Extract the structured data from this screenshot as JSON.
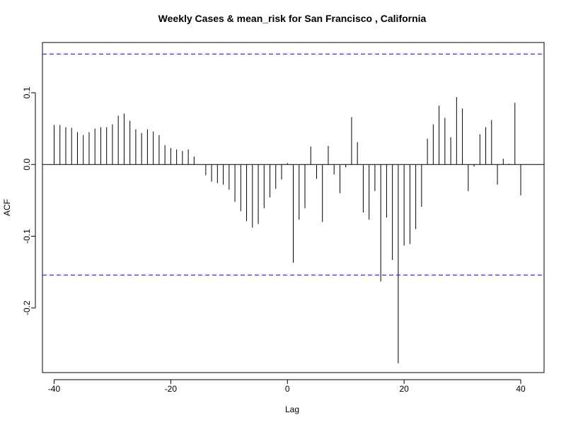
{
  "chart_data": {
    "type": "bar",
    "title": "Weekly Cases & mean_risk for San Francisco , California",
    "xlabel": "Lag",
    "ylabel": "ACF",
    "xlim": [
      -42,
      44
    ],
    "ylim": [
      -0.29,
      0.17
    ],
    "x_ticks": [
      -40,
      -20,
      0,
      20,
      40
    ],
    "x_tick_labels": [
      "-40",
      "-20",
      "0",
      "20",
      "40"
    ],
    "y_ticks": [
      -0.2,
      -0.1,
      0.0,
      0.1
    ],
    "y_tick_labels": [
      "-0.2",
      "-0.1",
      "0.0",
      "0.1"
    ],
    "confidence_bounds": [
      0.154,
      -0.154
    ],
    "confidence_line_color": "#0000ff",
    "bar_color": "#000000",
    "zero_line": true,
    "grid": false,
    "x": [
      -40,
      -39,
      -38,
      -37,
      -36,
      -35,
      -34,
      -33,
      -32,
      -31,
      -30,
      -29,
      -28,
      -27,
      -26,
      -25,
      -24,
      -23,
      -22,
      -21,
      -20,
      -19,
      -18,
      -17,
      -16,
      -15,
      -14,
      -13,
      -12,
      -11,
      -10,
      -9,
      -8,
      -7,
      -6,
      -5,
      -4,
      -3,
      -2,
      -1,
      0,
      1,
      2,
      3,
      4,
      5,
      6,
      7,
      8,
      9,
      10,
      11,
      12,
      13,
      14,
      15,
      16,
      17,
      18,
      19,
      20,
      21,
      22,
      23,
      24,
      25,
      26,
      27,
      28,
      29,
      30,
      31,
      32,
      33,
      34,
      35,
      36,
      37,
      38,
      39,
      40
    ],
    "values": [
      0.055,
      0.055,
      0.052,
      0.051,
      0.045,
      0.041,
      0.045,
      0.05,
      0.052,
      0.052,
      0.056,
      0.068,
      0.071,
      0.061,
      0.049,
      0.044,
      0.049,
      0.046,
      0.041,
      0.027,
      0.023,
      0.021,
      0.019,
      0.021,
      0.011,
      0.0,
      -0.015,
      -0.024,
      -0.026,
      -0.028,
      -0.035,
      -0.052,
      -0.065,
      -0.079,
      -0.088,
      -0.083,
      -0.061,
      -0.046,
      -0.034,
      -0.021,
      0.002,
      -0.137,
      -0.077,
      -0.061,
      0.025,
      -0.02,
      -0.08,
      0.026,
      -0.014,
      -0.04,
      -0.004,
      0.066,
      0.031,
      -0.067,
      -0.077,
      -0.037,
      -0.163,
      -0.074,
      -0.133,
      -0.277,
      -0.113,
      -0.111,
      -0.09,
      -0.059,
      0.036,
      0.056,
      0.082,
      0.065,
      0.038,
      0.094,
      0.078,
      -0.037,
      -0.003,
      0.042,
      0.052,
      0.062,
      -0.028,
      0.008,
      0.001,
      0.086,
      -0.043
    ]
  }
}
